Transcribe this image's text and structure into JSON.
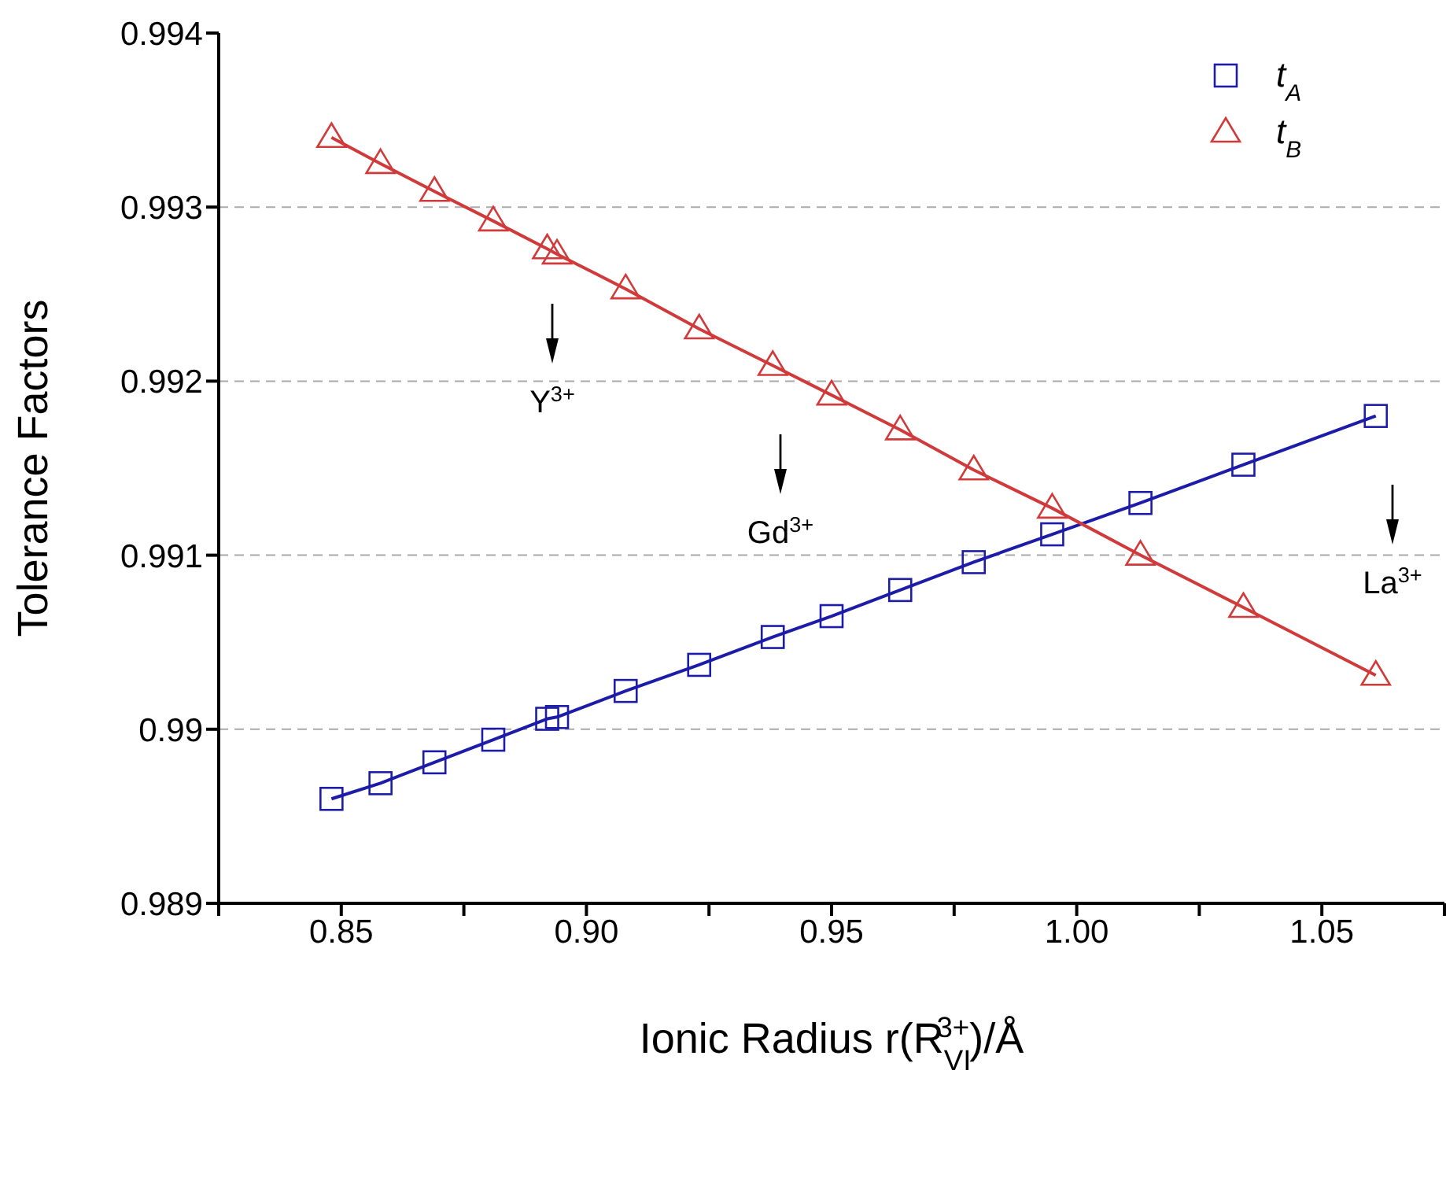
{
  "chart_data": {
    "type": "line",
    "xlabel": "Ionic Radius r(R$_{VI}$$^{3+}$)/Å",
    "ylabel": "Tolerance Factors",
    "x": [
      0.848,
      0.858,
      0.869,
      0.881,
      0.892,
      0.894,
      0.908,
      0.923,
      0.938,
      0.95,
      0.964,
      0.979,
      0.995,
      1.013,
      1.034,
      1.061
    ],
    "series": [
      {
        "name": "t$_{A}$",
        "color": "#1c1ca8",
        "marker": "square",
        "values": [
          0.9896,
          0.98969,
          0.98981,
          0.98994,
          0.99006,
          0.99007,
          0.99022,
          0.99037,
          0.99053,
          0.99065,
          0.9908,
          0.99096,
          0.99112,
          0.9913,
          0.99152,
          0.9918
        ]
      },
      {
        "name": "t$_{B}$",
        "color": "#d13a3a",
        "marker": "triangle",
        "values": [
          0.9934,
          0.99325,
          0.99309,
          0.99292,
          0.99276,
          0.99273,
          0.99253,
          0.9923,
          0.99209,
          0.99192,
          0.99172,
          0.99149,
          0.99127,
          0.991,
          0.9907,
          0.99031
        ]
      }
    ],
    "xlim": [
      0.825,
      1.075
    ],
    "xticks": [
      {
        "value": 0.825,
        "label": null
      },
      0.85,
      {
        "value": 0.875,
        "label": null
      },
      {
        "value": 0.9,
        "label": "0.90"
      },
      {
        "value": 0.925,
        "label": null
      },
      0.95,
      {
        "value": 0.975,
        "label": null
      },
      {
        "value": 1.0,
        "label": "1.00"
      },
      {
        "value": 1.025,
        "label": null
      },
      1.05,
      {
        "value": 1.075,
        "label": null
      }
    ],
    "ylim": [
      0.989,
      0.994
    ],
    "yticks": [
      0.989,
      0.99,
      0.991,
      0.992,
      0.993,
      0.994
    ],
    "grid": "y",
    "legend": "top right",
    "line_style": "solid",
    "annotations": [
      "Y$^{3+}$",
      "Gd$^{3+}$",
      "La$^{3+}$"
    ]
  }
}
